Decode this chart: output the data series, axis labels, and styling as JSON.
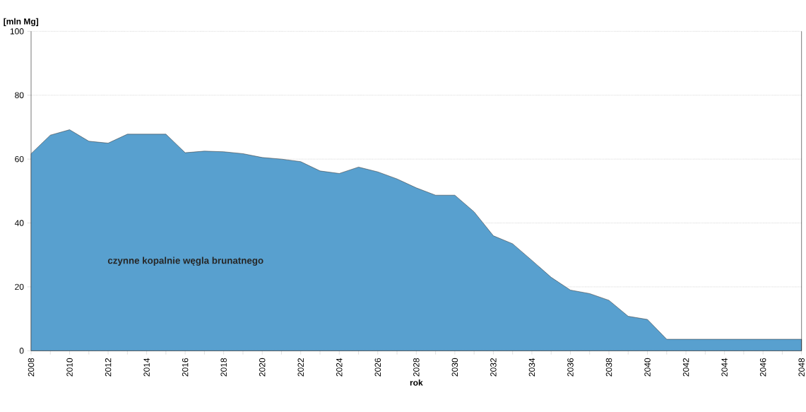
{
  "chart_data": {
    "type": "area",
    "ylabel": "[mln Mg]",
    "xlabel": "rok",
    "x": [
      2008,
      2009,
      2010,
      2011,
      2012,
      2013,
      2014,
      2015,
      2016,
      2017,
      2018,
      2019,
      2020,
      2021,
      2022,
      2023,
      2024,
      2025,
      2026,
      2027,
      2028,
      2029,
      2030,
      2031,
      2032,
      2033,
      2034,
      2035,
      2036,
      2037,
      2038,
      2039,
      2040,
      2041,
      2042,
      2043,
      2044,
      2045,
      2046,
      2047,
      2048
    ],
    "values": [
      61.7,
      67.5,
      69.2,
      65.6,
      65.0,
      67.8,
      67.8,
      67.8,
      62.0,
      62.5,
      62.3,
      61.7,
      60.5,
      60.0,
      59.2,
      56.3,
      55.5,
      57.5,
      56.0,
      53.8,
      51.0,
      48.7,
      48.7,
      43.5,
      36.0,
      33.5,
      28.3,
      23.0,
      19.0,
      17.9,
      15.8,
      10.8,
      9.8,
      3.6,
      3.6,
      3.6,
      3.6,
      3.6,
      3.6,
      3.6,
      3.6
    ],
    "color": "#58a0cf",
    "xlim": [
      2008,
      2048
    ],
    "xticks": [
      2008,
      2010,
      2012,
      2014,
      2016,
      2018,
      2020,
      2022,
      2024,
      2026,
      2028,
      2030,
      2032,
      2034,
      2036,
      2038,
      2040,
      2042,
      2044,
      2046,
      2048
    ],
    "ylim": [
      0,
      100
    ],
    "yticks": [
      0,
      20,
      40,
      60,
      80,
      100
    ],
    "grid": "y",
    "annotations": [
      "czynne kopalnie węgla brunatnego"
    ]
  }
}
